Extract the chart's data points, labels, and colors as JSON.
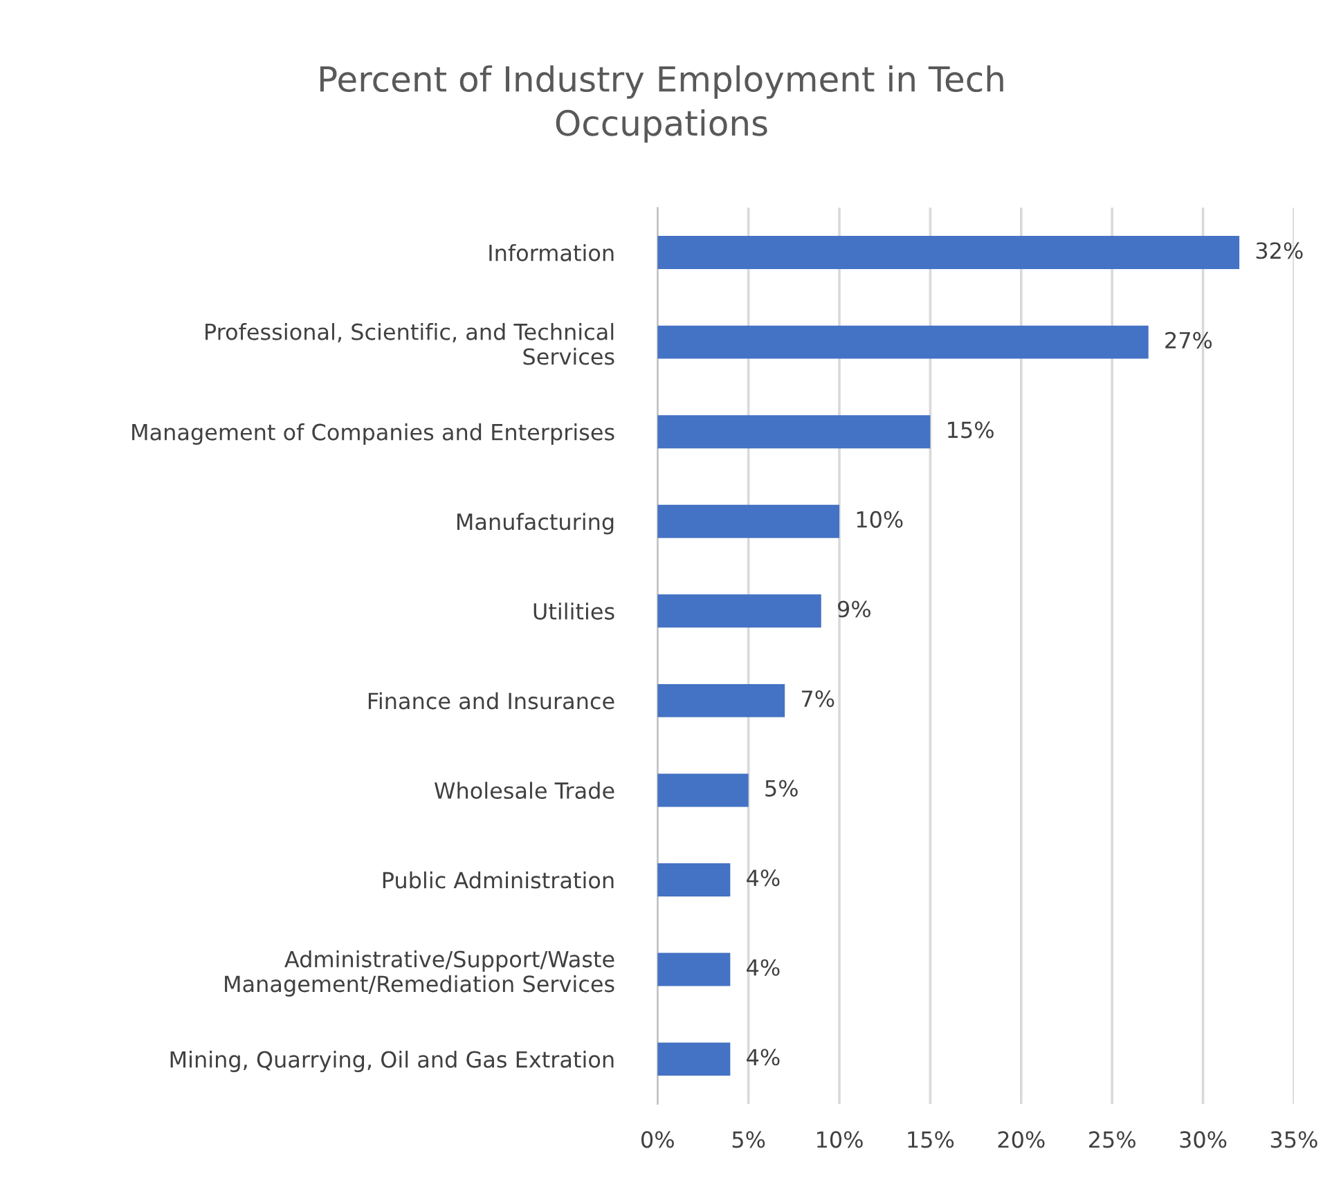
{
  "chart_data": {
    "type": "bar",
    "orientation": "horizontal",
    "title": "Percent of Industry Employment in Tech\nOccupations",
    "categories": [
      "Information",
      "Professional, Scientific, and Technical\nServices",
      "Management of Companies and Enterprises",
      "Manufacturing",
      "Utilities",
      "Finance and Insurance",
      "Wholesale Trade",
      "Public Administration",
      "Administrative/Support/Waste\nManagement/Remediation Services",
      "Mining, Quarrying, Oil and Gas Extration"
    ],
    "values": [
      32,
      27,
      15,
      10,
      9,
      7,
      5,
      4,
      4,
      4
    ],
    "value_labels": [
      "32%",
      "27%",
      "15%",
      "10%",
      "9%",
      "7%",
      "5%",
      "4%",
      "4%",
      "4%"
    ],
    "color": "#4472c4",
    "xlim": [
      0,
      35
    ],
    "xticks": [
      {
        "value": 0,
        "label": "0%"
      },
      {
        "value": 5,
        "label": "5%"
      },
      {
        "value": 10,
        "label": "10%"
      },
      {
        "value": 15,
        "label": "15%"
      },
      {
        "value": 20,
        "label": "20%"
      },
      {
        "value": 25,
        "label": "25%"
      },
      {
        "value": 30,
        "label": "30%"
      },
      {
        "value": 35,
        "label": "35%"
      }
    ],
    "grid": "x",
    "legend": false
  }
}
